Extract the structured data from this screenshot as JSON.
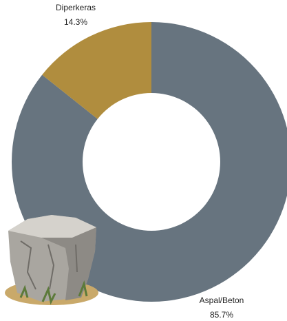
{
  "chart_data": {
    "type": "pie",
    "categories": [
      "Aspal/Beton",
      "Diperkeras"
    ],
    "values": [
      85.7,
      14.3
    ],
    "value_labels": [
      "85.7%",
      "14.3%"
    ],
    "colors": [
      "#67747f",
      "#b08d3e"
    ]
  }
}
